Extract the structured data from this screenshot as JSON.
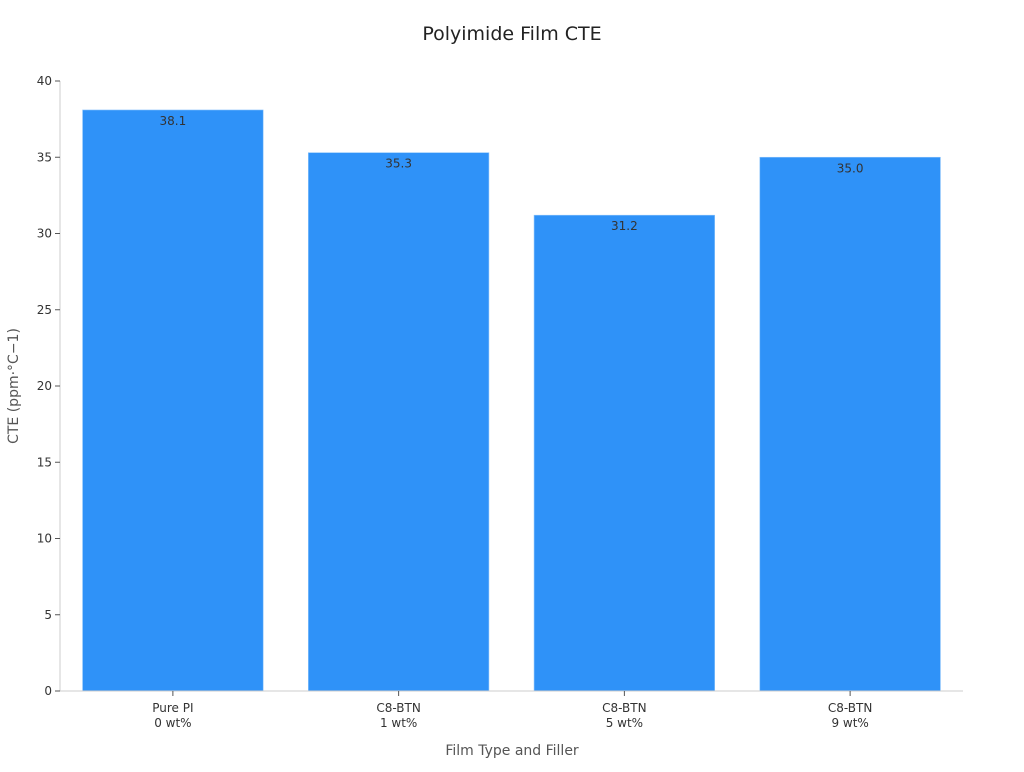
{
  "chart_data": {
    "type": "bar",
    "title": "Polyimide Film CTE",
    "xlabel": "Film Type and Filler",
    "ylabel": "CTE (ppm·°C−1)",
    "categories": [
      [
        "Pure PI",
        "0 wt%"
      ],
      [
        "C8-BTN",
        "1 wt%"
      ],
      [
        "C8-BTN",
        "5 wt%"
      ],
      [
        "C8-BTN",
        "9 wt%"
      ]
    ],
    "values": [
      38.1,
      35.3,
      31.2,
      35.0
    ],
    "value_labels": [
      "38.1",
      "35.3",
      "31.2",
      "35.0"
    ],
    "ylim": [
      0,
      40
    ],
    "yticks": [
      0,
      5,
      10,
      15,
      20,
      25,
      30,
      35,
      40
    ],
    "grid": false,
    "bar_color": "#2f92f8"
  }
}
